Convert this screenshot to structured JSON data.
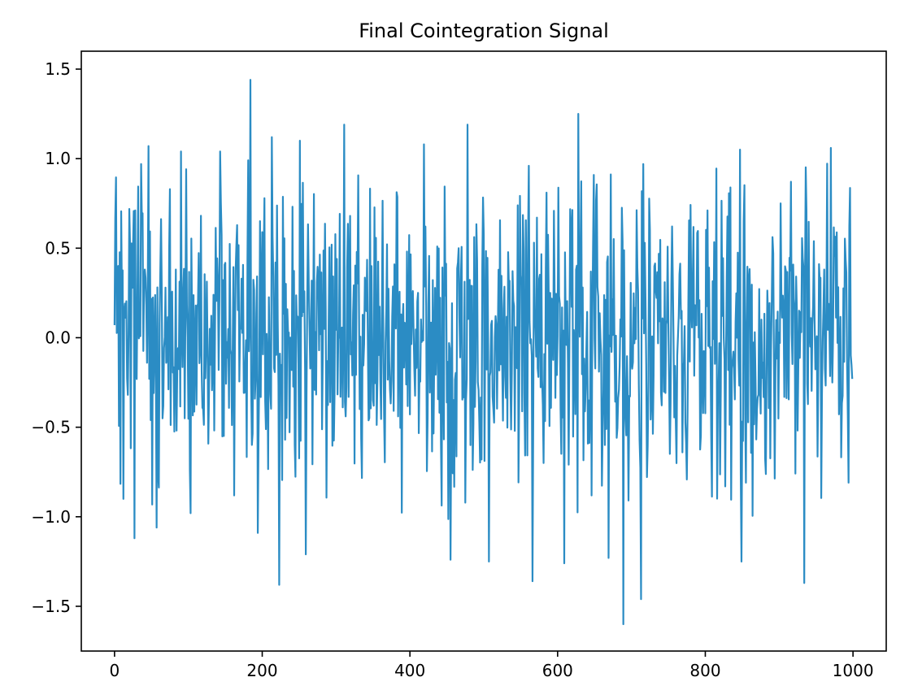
{
  "chart_data": {
    "type": "line",
    "title": "Final Cointegration Signal",
    "xlabel": "",
    "ylabel": "",
    "xlim": [
      -45,
      1045
    ],
    "ylim": [
      -1.75,
      1.6
    ],
    "x_ticks": [
      0,
      200,
      400,
      600,
      800,
      1000
    ],
    "x_tick_labels": [
      "0",
      "200",
      "400",
      "600",
      "800",
      "1000"
    ],
    "y_ticks": [
      1.5,
      1.0,
      0.5,
      0.0,
      -0.5,
      -1.0,
      -1.5
    ],
    "y_tick_labels": [
      "1.5",
      "1.0",
      "0.5",
      "0.0",
      "−0.5",
      "−1.0",
      "−1.5"
    ],
    "grid": false,
    "legend": "none",
    "series": [
      {
        "color": "#2b8cc4",
        "n_points": 1000,
        "x_start": 0,
        "x_step": 1,
        "peaks": [
          {
            "x": 184,
            "y": 1.44
          },
          {
            "x": 628,
            "y": 1.25
          },
          {
            "x": 311,
            "y": 1.19
          },
          {
            "x": 478,
            "y": 1.19
          },
          {
            "x": 251,
            "y": 1.1
          },
          {
            "x": 213,
            "y": 1.12
          },
          {
            "x": 46,
            "y": 1.07
          },
          {
            "x": 970,
            "y": 1.06
          },
          {
            "x": 847,
            "y": 1.05
          },
          {
            "x": 90,
            "y": 1.04
          },
          {
            "x": 143,
            "y": 1.04
          },
          {
            "x": 419,
            "y": 1.08
          },
          {
            "x": 716,
            "y": 0.97
          },
          {
            "x": 36,
            "y": 0.97
          },
          {
            "x": 561,
            "y": 0.96
          }
        ],
        "troughs": [
          {
            "x": 689,
            "y": -1.6
          },
          {
            "x": 713,
            "y": -1.46
          },
          {
            "x": 223,
            "y": -1.38
          },
          {
            "x": 934,
            "y": -1.37
          },
          {
            "x": 566,
            "y": -1.36
          },
          {
            "x": 849,
            "y": -1.25
          },
          {
            "x": 507,
            "y": -1.25
          },
          {
            "x": 455,
            "y": -1.24
          },
          {
            "x": 609,
            "y": -1.26
          },
          {
            "x": 669,
            "y": -1.23
          },
          {
            "x": 259,
            "y": -1.21
          },
          {
            "x": 27,
            "y": -1.12
          },
          {
            "x": 194,
            "y": -1.09
          },
          {
            "x": 103,
            "y": -0.98
          },
          {
            "x": 12,
            "y": -0.9
          }
        ],
        "start_value": 0.07,
        "end_value": -0.23,
        "mean": 0.0,
        "std": 0.42
      }
    ]
  }
}
